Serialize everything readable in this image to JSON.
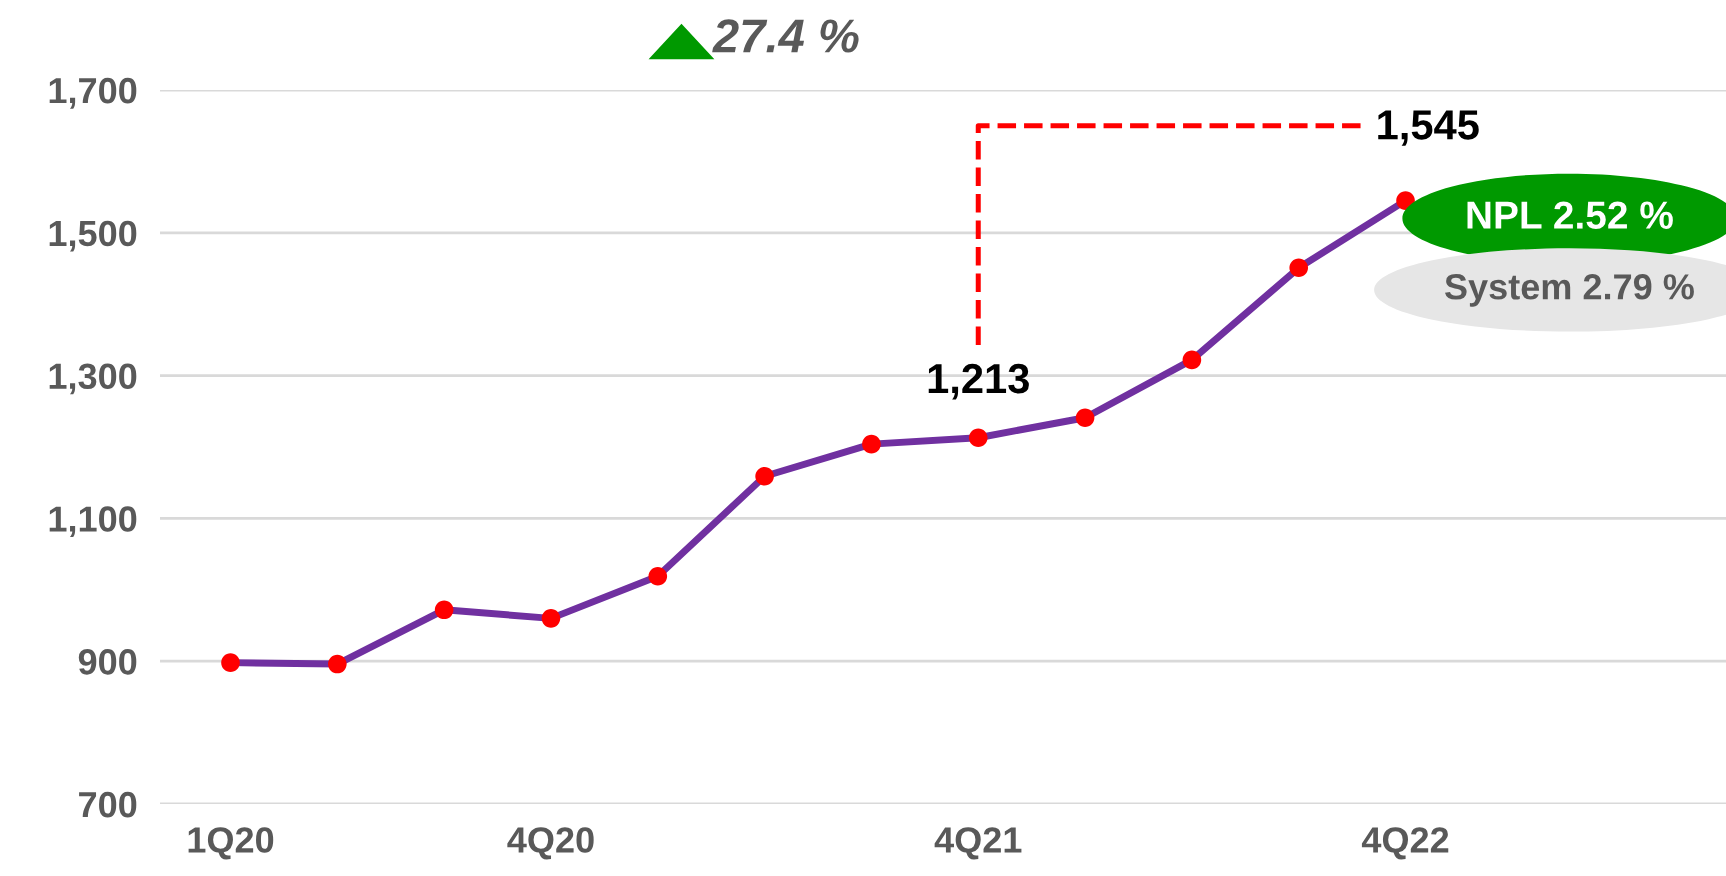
{
  "chart_data": {
    "type": "line",
    "categories": [
      "1Q20",
      null,
      null,
      "4Q20",
      null,
      null,
      null,
      "4Q21",
      null,
      null,
      null,
      "4Q22"
    ],
    "series": [
      {
        "color": "#7030a0",
        "colors": [
          "#ff0000",
          "#ff0000",
          "#ff0000",
          "#ff0000",
          "#ff0000",
          "#ff0000",
          "#ff0000",
          "#ff0000",
          "#ff0000",
          "#ff0000",
          "#ff0000",
          "#ff0000"
        ],
        "values": [
          898,
          896,
          972,
          960,
          1019,
          1159,
          1204,
          1213,
          1241,
          1322,
          1451,
          1545
        ],
        "value_labels": [
          null,
          null,
          null,
          null,
          null,
          null,
          null,
          "1,213",
          null,
          null,
          null,
          "1,545"
        ]
      }
    ],
    "ylim": [
      700,
      1700
    ],
    "yticks": [
      {
        "value": 700,
        "label": "700"
      },
      {
        "value": 900,
        "label": "900"
      },
      {
        "value": 1100,
        "label": "1,100"
      },
      {
        "value": 1300,
        "label": "1,300"
      },
      {
        "value": 1500,
        "label": "1,500"
      },
      {
        "value": 1700,
        "label": "1,700"
      }
    ],
    "grid": "y",
    "marker": "circle",
    "line_style": "solid",
    "legend": false,
    "annotations": [
      "27.4 %",
      "NPL 2.52 %",
      "System 2.79 %"
    ]
  }
}
